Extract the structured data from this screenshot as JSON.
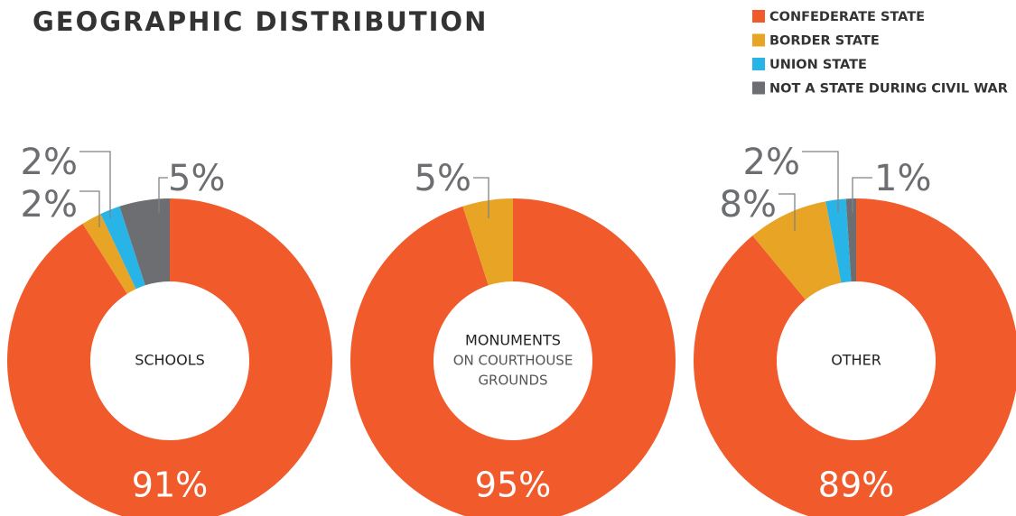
{
  "title": "GEOGRAPHIC DISTRIBUTION",
  "legend": {
    "names": [
      "CONFEDERATE STATE",
      "BORDER STATE",
      "UNION STATE",
      "NOT A STATE DURING CIVIL WAR"
    ],
    "colors": [
      "#f15a2b",
      "#e8a425",
      "#29b4e8",
      "#6d6e71"
    ]
  },
  "chart_data": [
    {
      "type": "pie",
      "center_label": "SCHOOLS",
      "categories": [
        "CONFEDERATE STATE",
        "BORDER STATE",
        "UNION STATE",
        "NOT A STATE DURING CIVIL WAR"
      ],
      "values": [
        91,
        2,
        2,
        5
      ],
      "value_labels": [
        "91%",
        "2%",
        "2%",
        "5%"
      ]
    },
    {
      "type": "pie",
      "center_label": "MONUMENTS",
      "center_sublabel": [
        "ON COURTHOUSE",
        "GROUNDS"
      ],
      "categories": [
        "CONFEDERATE STATE",
        "BORDER STATE"
      ],
      "values": [
        95,
        5
      ],
      "value_labels": [
        "95%",
        "5%"
      ]
    },
    {
      "type": "pie",
      "center_label": "OTHER",
      "categories": [
        "CONFEDERATE STATE",
        "BORDER STATE",
        "UNION STATE",
        "NOT A STATE DURING CIVIL WAR"
      ],
      "values": [
        89,
        8,
        2,
        1
      ],
      "value_labels": [
        "89%",
        "8%",
        "2%",
        "1%"
      ]
    }
  ]
}
